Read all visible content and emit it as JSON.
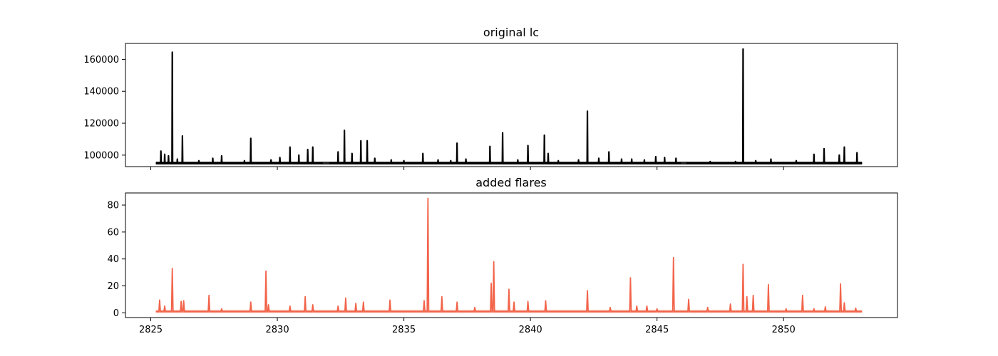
{
  "chart_data": [
    {
      "type": "line",
      "title": "original lc",
      "xlabel": "",
      "ylabel": "",
      "xlim": [
        2824,
        2854.5
      ],
      "ylim": [
        92800,
        170000
      ],
      "xticks": [
        2825,
        2830,
        2835,
        2840,
        2845,
        2850
      ],
      "xtick_labels_visible": false,
      "yticks": [
        100000,
        120000,
        140000,
        160000
      ],
      "ytick_labels": [
        "100000",
        "120000",
        "140000",
        "160000"
      ],
      "grid": false,
      "legend": "none",
      "color": "#000000",
      "baseline": 95000,
      "baseline_range": [
        2825.2,
        2853.1
      ],
      "gaps": [
        [
          2831.8,
          2832.05
        ],
        [
          2845.95,
          2846.15
        ]
      ],
      "peaks": [
        {
          "x": 2825.4,
          "y": 102500
        },
        {
          "x": 2825.55,
          "y": 100500
        },
        {
          "x": 2825.7,
          "y": 99500
        },
        {
          "x": 2825.85,
          "y": 164500
        },
        {
          "x": 2826.05,
          "y": 97500
        },
        {
          "x": 2826.25,
          "y": 112000
        },
        {
          "x": 2826.9,
          "y": 96500
        },
        {
          "x": 2827.45,
          "y": 98000
        },
        {
          "x": 2827.8,
          "y": 99500
        },
        {
          "x": 2828.7,
          "y": 96500
        },
        {
          "x": 2828.95,
          "y": 110500
        },
        {
          "x": 2829.75,
          "y": 97000
        },
        {
          "x": 2830.1,
          "y": 98500
        },
        {
          "x": 2830.5,
          "y": 105000
        },
        {
          "x": 2830.85,
          "y": 100000
        },
        {
          "x": 2831.2,
          "y": 103500
        },
        {
          "x": 2831.4,
          "y": 105000
        },
        {
          "x": 2832.4,
          "y": 102000
        },
        {
          "x": 2832.65,
          "y": 115500
        },
        {
          "x": 2832.95,
          "y": 101000
        },
        {
          "x": 2833.3,
          "y": 109000
        },
        {
          "x": 2833.55,
          "y": 109000
        },
        {
          "x": 2833.85,
          "y": 98000
        },
        {
          "x": 2834.5,
          "y": 97000
        },
        {
          "x": 2835.0,
          "y": 96500
        },
        {
          "x": 2835.75,
          "y": 101000
        },
        {
          "x": 2836.35,
          "y": 97000
        },
        {
          "x": 2836.85,
          "y": 96500
        },
        {
          "x": 2837.1,
          "y": 107500
        },
        {
          "x": 2837.45,
          "y": 97500
        },
        {
          "x": 2838.4,
          "y": 105500
        },
        {
          "x": 2838.9,
          "y": 114000
        },
        {
          "x": 2839.5,
          "y": 97000
        },
        {
          "x": 2839.9,
          "y": 106000
        },
        {
          "x": 2840.55,
          "y": 112500
        },
        {
          "x": 2840.7,
          "y": 101000
        },
        {
          "x": 2841.1,
          "y": 96500
        },
        {
          "x": 2841.9,
          "y": 97000
        },
        {
          "x": 2842.25,
          "y": 127500
        },
        {
          "x": 2842.7,
          "y": 98000
        },
        {
          "x": 2843.1,
          "y": 102000
        },
        {
          "x": 2843.6,
          "y": 97500
        },
        {
          "x": 2844.0,
          "y": 97500
        },
        {
          "x": 2844.5,
          "y": 97000
        },
        {
          "x": 2844.95,
          "y": 99000
        },
        {
          "x": 2845.3,
          "y": 98500
        },
        {
          "x": 2845.75,
          "y": 98000
        },
        {
          "x": 2847.1,
          "y": 96000
        },
        {
          "x": 2848.1,
          "y": 96000
        },
        {
          "x": 2848.4,
          "y": 166500
        },
        {
          "x": 2848.9,
          "y": 96500
        },
        {
          "x": 2849.5,
          "y": 97500
        },
        {
          "x": 2850.5,
          "y": 96500
        },
        {
          "x": 2851.2,
          "y": 100500
        },
        {
          "x": 2851.6,
          "y": 104000
        },
        {
          "x": 2852.2,
          "y": 100000
        },
        {
          "x": 2852.4,
          "y": 105000
        },
        {
          "x": 2852.9,
          "y": 101500
        }
      ]
    },
    {
      "type": "line",
      "title": "added flares",
      "xlabel": "",
      "ylabel": "",
      "xlim": [
        2824,
        2854.5
      ],
      "ylim": [
        -3.5,
        89
      ],
      "xticks": [
        2825,
        2830,
        2835,
        2840,
        2845,
        2850
      ],
      "xtick_labels": [
        "2825",
        "2830",
        "2835",
        "2840",
        "2845",
        "2850"
      ],
      "yticks": [
        0,
        20,
        40,
        60,
        80
      ],
      "ytick_labels": [
        "0",
        "20",
        "40",
        "60",
        "80"
      ],
      "grid": false,
      "legend": "none",
      "color": "#f2644a",
      "baseline": 1,
      "baseline_range": [
        2825.2,
        2853.1
      ],
      "peaks": [
        {
          "x": 2825.35,
          "y": 9.5
        },
        {
          "x": 2825.55,
          "y": 5
        },
        {
          "x": 2825.85,
          "y": 33
        },
        {
          "x": 2826.2,
          "y": 8.5
        },
        {
          "x": 2826.3,
          "y": 9
        },
        {
          "x": 2827.3,
          "y": 13
        },
        {
          "x": 2827.8,
          "y": 3
        },
        {
          "x": 2828.95,
          "y": 8
        },
        {
          "x": 2829.55,
          "y": 31
        },
        {
          "x": 2829.65,
          "y": 6
        },
        {
          "x": 2830.5,
          "y": 5
        },
        {
          "x": 2831.1,
          "y": 12
        },
        {
          "x": 2831.4,
          "y": 6
        },
        {
          "x": 2832.4,
          "y": 5
        },
        {
          "x": 2832.7,
          "y": 11
        },
        {
          "x": 2833.1,
          "y": 7
        },
        {
          "x": 2833.4,
          "y": 8
        },
        {
          "x": 2834.45,
          "y": 9.5
        },
        {
          "x": 2835.8,
          "y": 9
        },
        {
          "x": 2835.95,
          "y": 85
        },
        {
          "x": 2836.5,
          "y": 12
        },
        {
          "x": 2837.1,
          "y": 8
        },
        {
          "x": 2837.8,
          "y": 4
        },
        {
          "x": 2838.45,
          "y": 22
        },
        {
          "x": 2838.55,
          "y": 38
        },
        {
          "x": 2839.15,
          "y": 17.5
        },
        {
          "x": 2839.35,
          "y": 8
        },
        {
          "x": 2839.9,
          "y": 8.5
        },
        {
          "x": 2840.6,
          "y": 9
        },
        {
          "x": 2842.25,
          "y": 16.5
        },
        {
          "x": 2843.15,
          "y": 4
        },
        {
          "x": 2843.95,
          "y": 26
        },
        {
          "x": 2844.2,
          "y": 5
        },
        {
          "x": 2844.6,
          "y": 5
        },
        {
          "x": 2845.0,
          "y": 3
        },
        {
          "x": 2845.65,
          "y": 41
        },
        {
          "x": 2846.25,
          "y": 10
        },
        {
          "x": 2847.0,
          "y": 4
        },
        {
          "x": 2847.9,
          "y": 6.5
        },
        {
          "x": 2848.4,
          "y": 36
        },
        {
          "x": 2848.55,
          "y": 12
        },
        {
          "x": 2848.8,
          "y": 13
        },
        {
          "x": 2849.4,
          "y": 21
        },
        {
          "x": 2850.1,
          "y": 3
        },
        {
          "x": 2850.75,
          "y": 13
        },
        {
          "x": 2851.2,
          "y": 3
        },
        {
          "x": 2851.65,
          "y": 4.5
        },
        {
          "x": 2852.25,
          "y": 21.5
        },
        {
          "x": 2852.4,
          "y": 7.5
        },
        {
          "x": 2852.85,
          "y": 3.5
        }
      ]
    }
  ]
}
